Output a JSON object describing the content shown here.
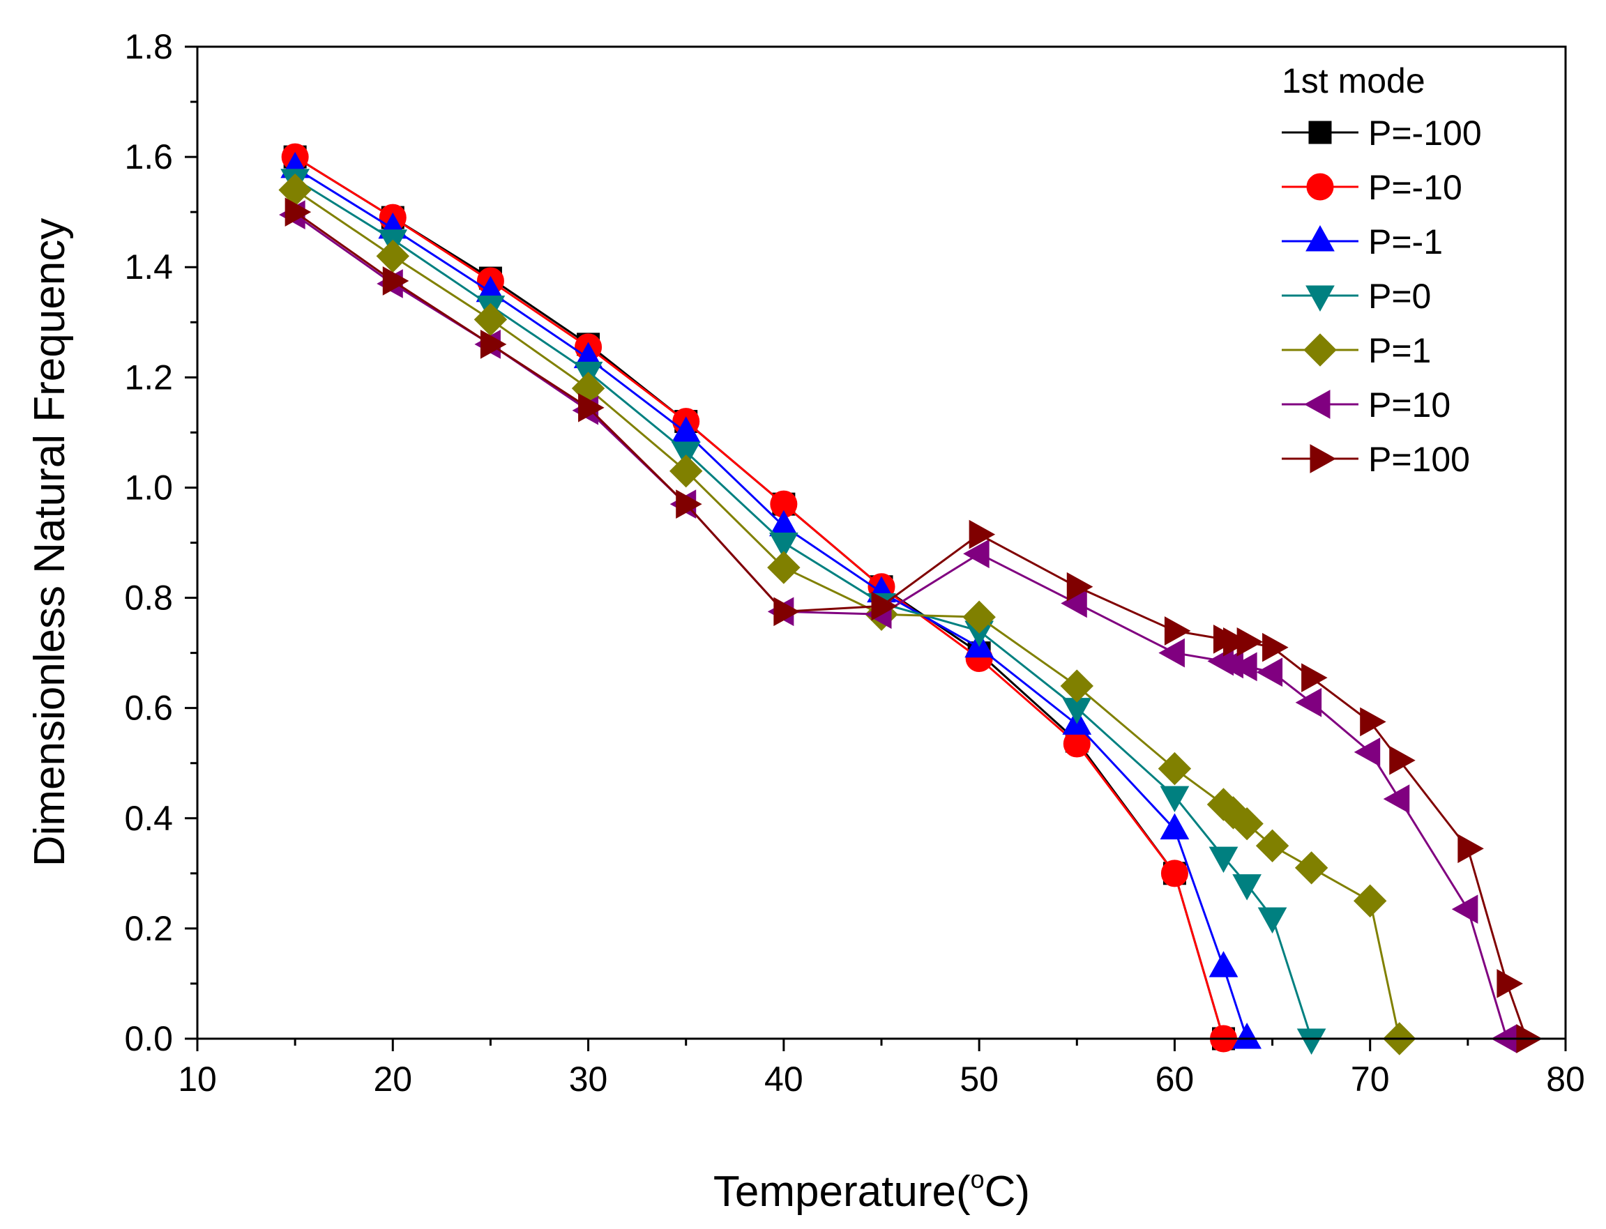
{
  "chart_data": {
    "type": "line",
    "title": "",
    "xlabel": "Temperature(°C)",
    "xlabel_parts": {
      "pre": "Temperature(",
      "sup": "o",
      "post": "C)"
    },
    "ylabel": "Dimensionless Natural Frequency",
    "xlim": [
      10,
      80
    ],
    "ylim": [
      0.0,
      1.8
    ],
    "x_ticks": [
      10,
      20,
      30,
      40,
      50,
      60,
      70,
      80
    ],
    "y_ticks": [
      0.0,
      0.2,
      0.4,
      0.6,
      0.8,
      1.0,
      1.2,
      1.4,
      1.6,
      1.8
    ],
    "x_tick_labels": [
      "10",
      "20",
      "30",
      "40",
      "50",
      "60",
      "70",
      "80"
    ],
    "y_tick_labels": [
      "0.0",
      "0.2",
      "0.4",
      "0.6",
      "0.8",
      "1.0",
      "1.2",
      "1.4",
      "1.6",
      "1.8"
    ],
    "grid": false,
    "legend": {
      "title": "1st mode",
      "position": "top-right"
    },
    "series": [
      {
        "name": "P=-100",
        "color": "#000000",
        "marker": "square",
        "x": [
          15,
          20,
          25,
          30,
          35,
          40,
          45,
          50,
          55,
          60,
          62.5
        ],
        "y": [
          1.6,
          1.49,
          1.38,
          1.26,
          1.12,
          0.97,
          0.82,
          0.7,
          0.54,
          0.3,
          0.0
        ]
      },
      {
        "name": "P=-10",
        "color": "#ff0000",
        "marker": "circle",
        "x": [
          15,
          20,
          25,
          30,
          35,
          40,
          45,
          50,
          55,
          60,
          62.5
        ],
        "y": [
          1.6,
          1.49,
          1.375,
          1.255,
          1.12,
          0.97,
          0.82,
          0.69,
          0.535,
          0.3,
          0.0
        ]
      },
      {
        "name": "P=-1",
        "color": "#0000ff",
        "marker": "triangle-up",
        "x": [
          15,
          20,
          25,
          30,
          35,
          40,
          45,
          50,
          55,
          60,
          62.5,
          63.7
        ],
        "y": [
          1.58,
          1.47,
          1.355,
          1.235,
          1.1,
          0.93,
          0.81,
          0.71,
          0.57,
          0.38,
          0.13,
          0.0
        ]
      },
      {
        "name": "P=0",
        "color": "#008080",
        "marker": "triangle-down",
        "x": [
          15,
          20,
          25,
          30,
          35,
          40,
          45,
          50,
          55,
          60,
          62.5,
          63.7,
          65,
          67
        ],
        "y": [
          1.56,
          1.45,
          1.33,
          1.21,
          1.065,
          0.9,
          0.79,
          0.74,
          0.6,
          0.44,
          0.33,
          0.28,
          0.22,
          0.0
        ]
      },
      {
        "name": "P=1",
        "color": "#808000",
        "marker": "diamond",
        "x": [
          15,
          20,
          25,
          30,
          35,
          40,
          45,
          50,
          55,
          60,
          62.5,
          63,
          63.7,
          65,
          67,
          70,
          71.5
        ],
        "y": [
          1.54,
          1.42,
          1.305,
          1.18,
          1.03,
          0.855,
          0.77,
          0.765,
          0.64,
          0.49,
          0.425,
          0.41,
          0.39,
          0.35,
          0.31,
          0.25,
          0.0
        ]
      },
      {
        "name": "P=10",
        "color": "#800080",
        "marker": "triangle-left",
        "x": [
          15,
          20,
          25,
          30,
          35,
          40,
          45,
          50,
          55,
          60,
          62.5,
          63,
          63.7,
          65,
          67,
          70,
          71.5,
          75,
          77
        ],
        "y": [
          1.495,
          1.37,
          1.26,
          1.14,
          0.97,
          0.775,
          0.77,
          0.88,
          0.79,
          0.7,
          0.685,
          0.68,
          0.675,
          0.665,
          0.61,
          0.52,
          0.435,
          0.235,
          0.0
        ]
      },
      {
        "name": "P=100",
        "color": "#800000",
        "marker": "triangle-right",
        "x": [
          15,
          20,
          25,
          30,
          35,
          40,
          45,
          50,
          55,
          60,
          62.5,
          63,
          63.7,
          65,
          67,
          70,
          71.5,
          75,
          77,
          78
        ],
        "y": [
          1.5,
          1.375,
          1.26,
          1.145,
          0.97,
          0.775,
          0.785,
          0.915,
          0.82,
          0.74,
          0.725,
          0.72,
          0.72,
          0.71,
          0.655,
          0.575,
          0.505,
          0.345,
          0.1,
          0.0
        ]
      }
    ]
  }
}
